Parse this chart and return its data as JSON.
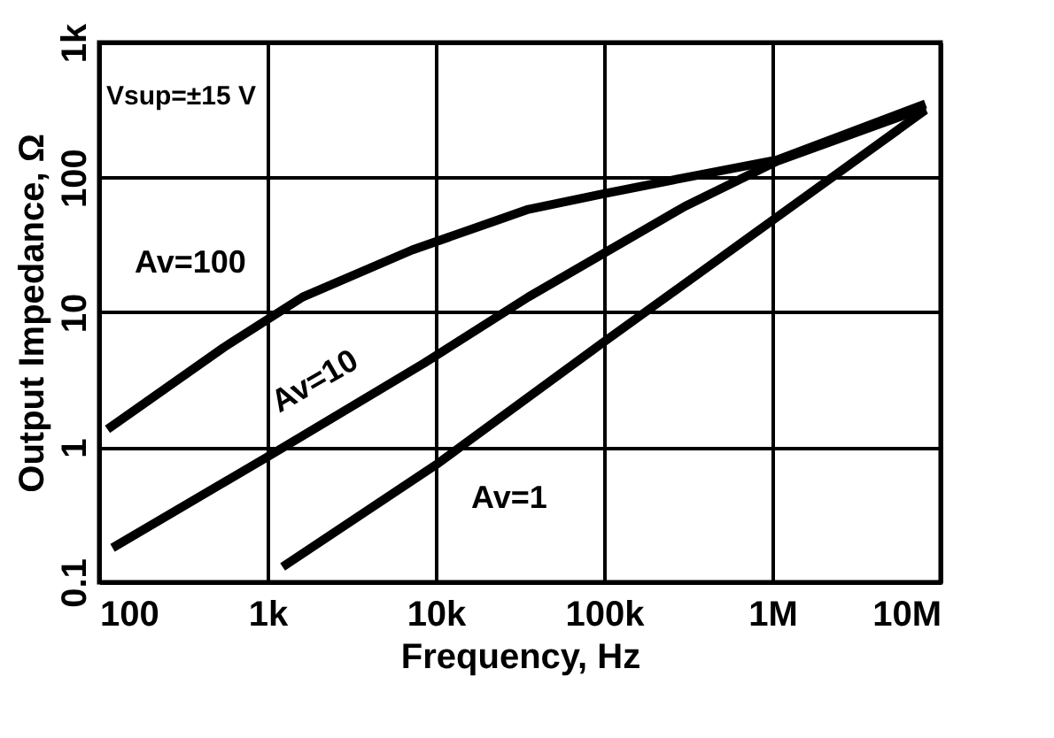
{
  "chart_data": {
    "type": "line",
    "xlabel": "Frequency, Hz",
    "ylabel": "Output Impedance, Ω",
    "log": "xy",
    "grid": true,
    "marker": "none",
    "line_style": "solid",
    "xlim": [
      100,
      10000000
    ],
    "ylim": [
      0.1,
      1000
    ],
    "xticks": [
      100,
      {
        "value": 1000,
        "label": "1k"
      },
      {
        "value": 10000,
        "label": "10k"
      },
      {
        "value": 100000,
        "label": "100k"
      },
      {
        "value": 1000000,
        "label": "1M"
      },
      {
        "value": 10000000,
        "label": "10M"
      }
    ],
    "yticks": [
      0.1,
      1,
      10,
      100,
      {
        "value": 1000,
        "label": "1k"
      }
    ],
    "series": [
      {
        "name": "Av=100",
        "color": "#000000",
        "x": [
          112,
          550,
          1620,
          7240,
          35500,
          95500,
          282000,
          1070000,
          8130000
        ],
        "values": [
          1.36,
          5.5,
          13,
          29,
          58,
          75,
          98,
          135,
          350
        ]
      },
      {
        "name": "Av=10",
        "color": "#000000",
        "x": [
          120,
          1000,
          8510,
          35500,
          302000,
          1070000,
          8130000
        ],
        "values": [
          0.18,
          0.85,
          4.2,
          13,
          61,
          132,
          330
        ]
      },
      {
        "name": "Av=1",
        "color": "#000000",
        "x": [
          1230,
          10000,
          95500,
          977000,
          8130000
        ],
        "values": [
          0.13,
          0.74,
          5.8,
          47,
          316
        ]
      }
    ],
    "annotations": [
      "Vsup=±15 V"
    ]
  }
}
